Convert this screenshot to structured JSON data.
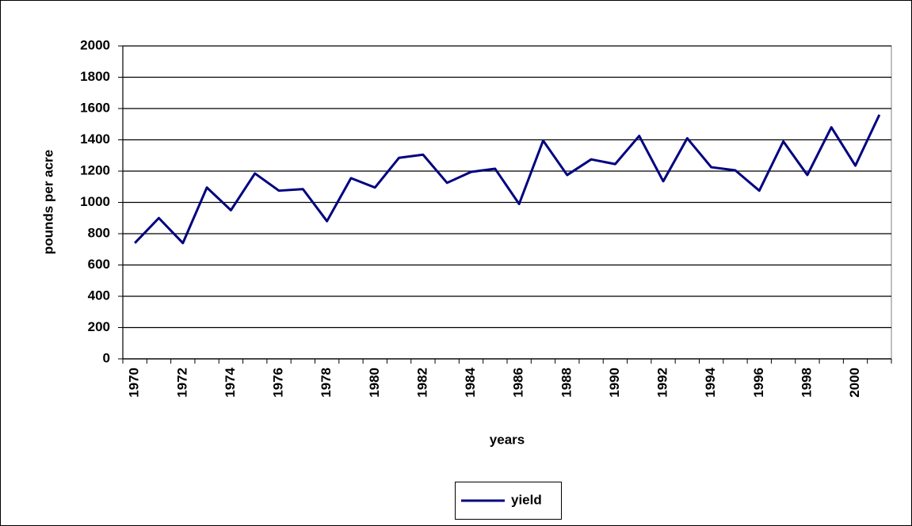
{
  "chart_data": {
    "type": "line",
    "x_label": "years",
    "y_label": "pounds per acre",
    "categories": [
      "1970",
      null,
      "1972",
      null,
      "1974",
      null,
      "1976",
      null,
      "1978",
      null,
      "1980",
      null,
      "1982",
      null,
      "1984",
      null,
      "1986",
      null,
      "1988",
      null,
      "1990",
      null,
      "1992",
      null,
      "1994",
      null,
      "1996",
      null,
      "1998",
      null,
      "2000",
      null
    ],
    "series": [
      {
        "name": "yield",
        "color": "#000080",
        "values": [
          740,
          900,
          740,
          1095,
          950,
          1185,
          1075,
          1085,
          880,
          1155,
          1095,
          1285,
          1305,
          1125,
          1195,
          1215,
          990,
          1395,
          1175,
          1275,
          1245,
          1425,
          1135,
          1410,
          1225,
          1205,
          1075,
          1390,
          1175,
          1480,
          1235,
          1560
        ]
      }
    ],
    "ylim": [
      0,
      2000
    ],
    "yticks": [
      0,
      200,
      400,
      600,
      800,
      1000,
      1200,
      1400,
      1600,
      1800,
      2000
    ],
    "grid": true,
    "legend": "bottom"
  }
}
